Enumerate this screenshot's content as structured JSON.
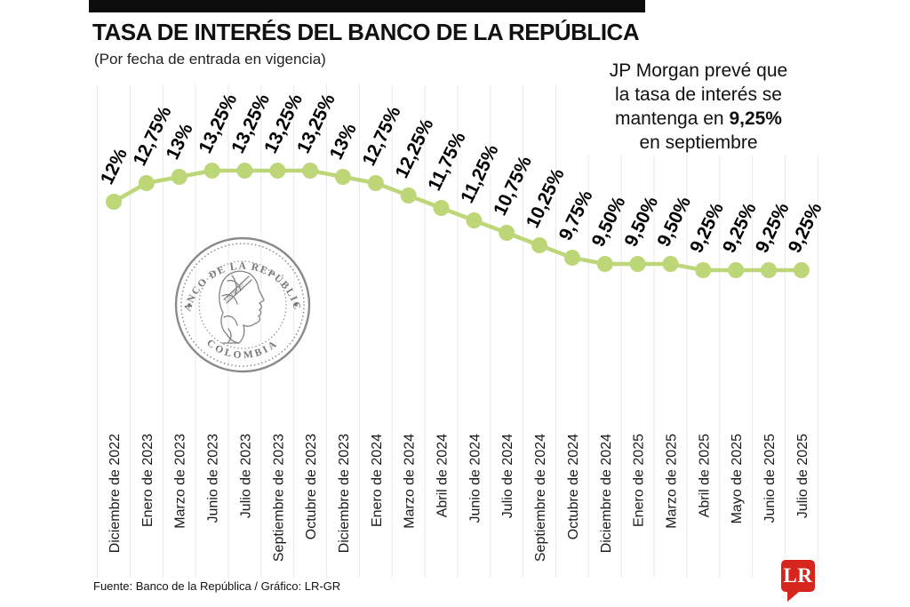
{
  "header": {
    "title": "TASA DE INTERÉS DEL BANCO DE LA REPÚBLICA",
    "subtitle": "(Por fecha de entrada en vigencia)"
  },
  "annotation": {
    "line1": "JP Morgan prevé que",
    "line2": "la tasa de interés se",
    "line3_prefix": "mantenga en ",
    "line3_bold": "9,25%",
    "line4": "en septiembre"
  },
  "chart_data": {
    "type": "line",
    "title": "TASA DE INTERÉS DEL BANCO DE LA REPÚBLICA",
    "subtitle": "(Por fecha de entrada en vigencia)",
    "xlabel": "",
    "ylabel": "",
    "ylim": [
      9,
      13.5
    ],
    "grid": "vertical",
    "legend": "none",
    "line_color": "#bcd678",
    "categories": [
      "Diciembre de 2022",
      "Enero de 2023",
      "Marzo de 2023",
      "Junio de 2023",
      "Julio de 2023",
      "Septiembre de 2023",
      "Octubre de 2023",
      "Diciembre de 2023",
      "Enero de 2024",
      "Marzo de 2024",
      "Abril de 2024",
      "Junio de 2024",
      "Julio de 2024",
      "Septiembre de 2024",
      "Octubre de 2024",
      "Diciembre de 2024",
      "Enero de 2025",
      "Marzo de 2025",
      "Abril de 2025",
      "Mayo de 2025",
      "Junio de 2025",
      "Julio de 2025"
    ],
    "values": [
      12,
      12.75,
      13,
      13.25,
      13.25,
      13.25,
      13.25,
      13,
      12.75,
      12.25,
      11.75,
      11.25,
      10.75,
      10.25,
      9.75,
      9.5,
      9.5,
      9.5,
      9.25,
      9.25,
      9.25,
      9.25
    ],
    "value_labels": [
      "12%",
      "12,75%",
      "13%",
      "13,25%",
      "13,25%",
      "13,25%",
      "13,25%",
      "13%",
      "12,75%",
      "12,25%",
      "11,75%",
      "11,25%",
      "10,75%",
      "10,25%",
      "9,75%",
      "9,50%",
      "9,50%",
      "9,50%",
      "9,25%",
      "9,25%",
      "9,25%",
      "9,25%"
    ]
  },
  "watermark": {
    "top_text": "BANCO DE LA REPÚBLICA",
    "bottom_text": "COLOMBIA",
    "ribbon_text": "LIBERTAD"
  },
  "footer": {
    "source": "Fuente: Banco de la República / Gráfico: LR-GR",
    "logo_text": "LR",
    "logo_color": "#d6251d"
  }
}
